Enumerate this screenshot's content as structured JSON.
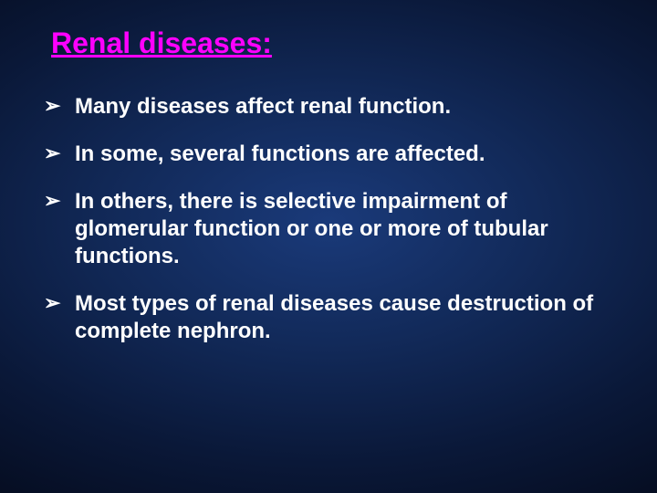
{
  "title": {
    "text": "Renal diseases:",
    "color": "#ff00ff"
  },
  "bullet_color": "#ffffff",
  "text_color": "#ffffff",
  "bullets": [
    "Many diseases affect renal function.",
    "In some, several functions are affected.",
    "In others, there is selective impairment of glomerular function or one or more of tubular functions.",
    "Most types of renal diseases cause destruction of  complete nephron."
  ],
  "background": {
    "inner": "#1a3a7a",
    "mid": "#122a5a",
    "outer": "#050c1f"
  },
  "font_family": "Arial",
  "title_fontsize": 32,
  "body_fontsize": 24
}
